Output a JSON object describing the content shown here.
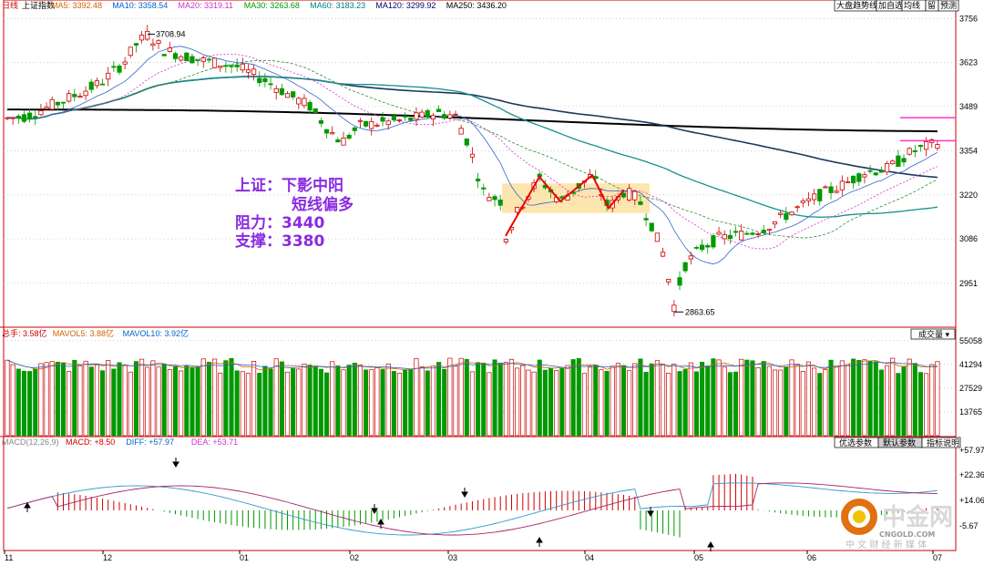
{
  "chart_data": {
    "type": "candlestick",
    "title": "上证指数",
    "period_label": "日线",
    "price_panel": {
      "ma_legend": [
        {
          "name": "MA5",
          "value": "3392.48",
          "color": "#cc6600"
        },
        {
          "name": "MA10",
          "value": "3358.54",
          "color": "#0066cc"
        },
        {
          "name": "MA20",
          "value": "3319.11",
          "color": "#cc33cc"
        },
        {
          "name": "MA30",
          "value": "3263.68",
          "color": "#009900"
        },
        {
          "name": "MA60",
          "value": "3183.23",
          "color": "#008080"
        },
        {
          "name": "MA120",
          "value": "3299.92",
          "color": "#000066"
        },
        {
          "name": "MA250",
          "value": "3436.20",
          "color": "#000000"
        }
      ],
      "y_ticks": [
        "3756",
        "3623",
        "3489",
        "3354",
        "3220",
        "3086",
        "2951"
      ],
      "ylim": [
        2820,
        3780
      ],
      "high_label": "3708.94",
      "low_label": "2863.65",
      "high_point": {
        "x": 162,
        "y": 3708.94
      },
      "low_point": {
        "x": 740,
        "y": 2863.65
      },
      "toolbar": [
        "大盘趋势线",
        "加自选",
        "均线",
        "留",
        "预测"
      ],
      "annotation_lines": [
        "上证：下影中阳",
        "短线偏多",
        "阻力：3440",
        "支撑：3380"
      ]
    },
    "volume_panel": {
      "legend": [
        {
          "name": "总手",
          "value": "3.58亿",
          "color": "#cc0000"
        },
        {
          "name": "MAVOL5",
          "value": "3.88亿",
          "color": "#cc6600"
        },
        {
          "name": "MAVOL10",
          "value": "3.92亿",
          "color": "#0066cc"
        }
      ],
      "y_ticks": [
        "55058",
        "41294",
        "27529",
        "13765"
      ],
      "ylim": [
        0,
        56000
      ],
      "selector": "成交量",
      "buttons": [
        "优选参数",
        "默认参数",
        "指标说明"
      ]
    },
    "macd_panel": {
      "legend_title": "MACD(12,26,9)",
      "legend": [
        {
          "name": "MACD",
          "value": "8.50",
          "color": "#cc0000"
        },
        {
          "name": "DIFF",
          "value": "57.97",
          "color": "#0066cc"
        },
        {
          "name": "DEA",
          "value": "53.71",
          "color": "#cc33cc"
        }
      ],
      "y_ticks": [
        "+57.97",
        "+22.36",
        "+14.06",
        "-5.67"
      ]
    },
    "x_ticks": [
      {
        "label": "11",
        "x": 5
      },
      {
        "label": "12",
        "x": 113
      },
      {
        "label": "01",
        "x": 263
      },
      {
        "label": "02",
        "x": 384
      },
      {
        "label": "03",
        "x": 492
      },
      {
        "label": "04",
        "x": 642
      },
      {
        "label": "05",
        "x": 762
      },
      {
        "label": "06",
        "x": 886
      },
      {
        "label": "07",
        "x": 1024
      }
    ],
    "watermark_brand": "中金网",
    "watermark_url": "CNGOLD.COM",
    "watermark_slogan": "中 文 财 经 新 媒 体",
    "colors": {
      "up": "#cc0000",
      "down": "#009900",
      "border": "#cc0000",
      "grid": "#b0b0b0"
    }
  }
}
